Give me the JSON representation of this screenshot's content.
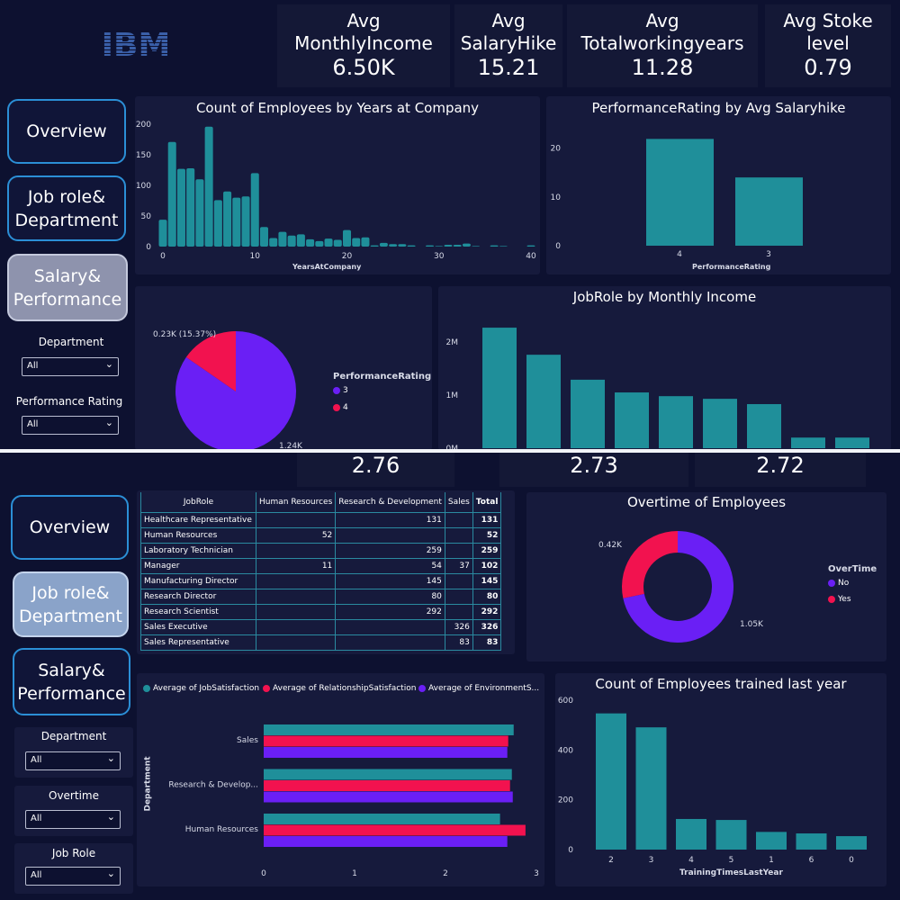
{
  "colors": {
    "teal": "#1f8f9a",
    "red": "#f2124f",
    "purple": "#6a1ff5",
    "background": "#0d1130"
  },
  "logo": "IBM",
  "top": {
    "kpis": [
      {
        "label": "Avg MonthlyIncome",
        "value": "6.50K"
      },
      {
        "label": "Avg SalaryHike",
        "value": "15.21"
      },
      {
        "label": "Avg Totalworkingyears",
        "value": "11.28"
      },
      {
        "label": "Avg Stoke level",
        "value": "0.79"
      }
    ],
    "nav": [
      "Overview",
      "Job role& Department",
      "Salary& Performance"
    ],
    "selected_nav": "Salary& Performance",
    "filters": [
      {
        "label": "Department",
        "value": "All"
      },
      {
        "label": "Performance Rating",
        "value": "All"
      }
    ]
  },
  "bottom": {
    "kpis": [
      "2.76",
      "2.73",
      "2.72"
    ],
    "nav": [
      "Overview",
      "Job role& Department",
      "Salary& Performance"
    ],
    "selected_nav": "Job role& Department",
    "filters": [
      {
        "label": "Department",
        "value": "All"
      },
      {
        "label": "Overtime",
        "value": "All"
      },
      {
        "label": "Job Role",
        "value": "All"
      }
    ],
    "table": {
      "headers": [
        "JobRole",
        "Human Resources",
        "Research & Development",
        "Sales",
        "Total"
      ],
      "rows": [
        [
          "Healthcare Representative",
          "",
          "131",
          "",
          "131"
        ],
        [
          "Human Resources",
          "52",
          "",
          "",
          "52"
        ],
        [
          "Laboratory Technician",
          "",
          "259",
          "",
          "259"
        ],
        [
          "Manager",
          "11",
          "54",
          "37",
          "102"
        ],
        [
          "Manufacturing Director",
          "",
          "145",
          "",
          "145"
        ],
        [
          "Research Director",
          "",
          "80",
          "",
          "80"
        ],
        [
          "Research Scientist",
          "",
          "292",
          "",
          "292"
        ],
        [
          "Sales Executive",
          "",
          "",
          "326",
          "326"
        ],
        [
          "Sales Representative",
          "",
          "",
          "83",
          "83"
        ]
      ]
    }
  },
  "chart_data": [
    {
      "id": "hist",
      "type": "bar",
      "title": "Count of Employees by Years at Company",
      "xlabel": "YearsAtCompany",
      "ylabel": "",
      "xlim": [
        0,
        40
      ],
      "ylim": [
        0,
        200
      ],
      "xticks": [
        "0",
        "10",
        "20",
        "30",
        "40"
      ],
      "yticks": [
        "0",
        "50",
        "100",
        "150",
        "200"
      ],
      "x": [
        0,
        1,
        2,
        3,
        4,
        5,
        6,
        7,
        8,
        9,
        10,
        11,
        12,
        13,
        14,
        15,
        16,
        17,
        18,
        19,
        20,
        21,
        22,
        23,
        24,
        25,
        26,
        27,
        29,
        30,
        31,
        32,
        33,
        34,
        36,
        37,
        40
      ],
      "values": [
        44,
        171,
        127,
        128,
        110,
        196,
        76,
        90,
        80,
        82,
        120,
        32,
        14,
        24,
        18,
        20,
        12,
        9,
        13,
        11,
        27,
        14,
        15,
        2,
        6,
        4,
        4,
        2,
        2,
        1,
        3,
        3,
        5,
        1,
        2,
        1,
        2
      ]
    },
    {
      "id": "perf",
      "type": "bar",
      "title": "PerformanceRating by Avg Salaryhike",
      "xlabel": "PerformanceRating",
      "categories": [
        "4",
        "3"
      ],
      "values": [
        21.9,
        14.0
      ],
      "ylim": [
        0,
        24
      ],
      "yticks": [
        "0",
        "10",
        "20"
      ]
    },
    {
      "id": "pie",
      "type": "pie",
      "legend_title": "PerformanceRating",
      "categories": [
        "3",
        "4"
      ],
      "values": [
        1244,
        226
      ],
      "labels": [
        "1.24K",
        "0.23K (15.37%)"
      ]
    },
    {
      "id": "jobrole",
      "type": "bar",
      "title": "JobRole by Monthly Income",
      "yticks": [
        "0M",
        "1M",
        "2M"
      ],
      "ylim": [
        0,
        2.4
      ],
      "values": [
        2.27,
        1.76,
        1.29,
        1.05,
        0.98,
        0.93,
        0.83,
        0.2,
        0.2
      ]
    },
    {
      "id": "overtime",
      "type": "pie",
      "donut": true,
      "title": "Overtime of Employees",
      "legend_title": "OverTime",
      "categories": [
        "No",
        "Yes"
      ],
      "values": [
        1054,
        416
      ],
      "labels": [
        "1.05K",
        "0.42K"
      ]
    },
    {
      "id": "satisfaction",
      "type": "bar",
      "orientation": "horizontal",
      "ylabel": "Department",
      "categories": [
        "Sales",
        "Research & Develop...",
        "Human Resources"
      ],
      "xticks": [
        "0",
        "1",
        "2",
        "3"
      ],
      "xlim": [
        0,
        3
      ],
      "series": [
        {
          "name": "Average of JobSatisfaction",
          "values": [
            2.75,
            2.73,
            2.6
          ]
        },
        {
          "name": "Average of RelationshipSatisfaction",
          "values": [
            2.69,
            2.71,
            2.88
          ]
        },
        {
          "name": "Average of EnvironmentS...",
          "values": [
            2.68,
            2.74,
            2.68
          ]
        }
      ]
    },
    {
      "id": "training",
      "type": "bar",
      "title": "Count of Employees trained last year",
      "xlabel": "TrainingTimesLastYear",
      "categories": [
        "2",
        "3",
        "4",
        "5",
        "1",
        "6",
        "0"
      ],
      "values": [
        547,
        491,
        123,
        119,
        71,
        65,
        54
      ],
      "ylim": [
        0,
        600
      ],
      "yticks": [
        "0",
        "200",
        "400",
        "600"
      ]
    }
  ]
}
